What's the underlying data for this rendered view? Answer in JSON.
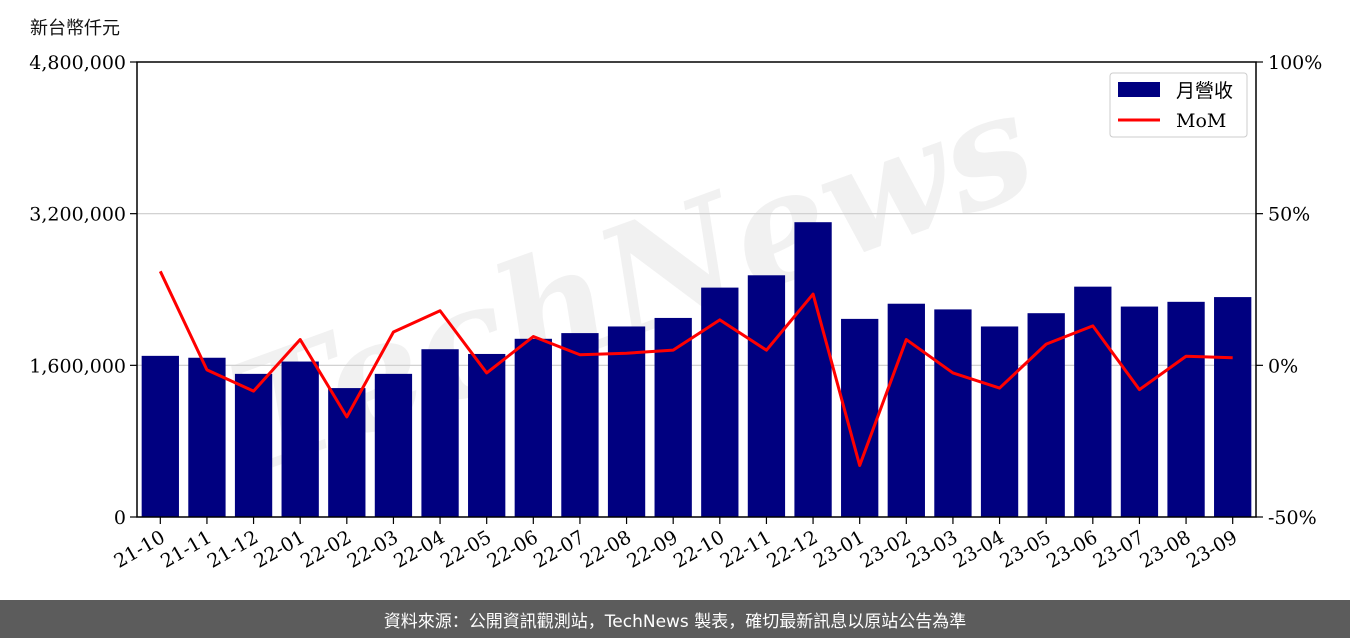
{
  "unit_label": "新台幣仟元",
  "footer_text": "資料來源：公開資訊觀測站，TechNews 製表，確切最新訊息以原站公告為準",
  "watermark": "TechNews",
  "colors": {
    "bar": "#000080",
    "line": "#ff0000",
    "grid": "#cccccc",
    "footer_bg": "#5c5c5c"
  },
  "chart_data": {
    "type": "bar",
    "categories": [
      "21-10",
      "21-11",
      "21-12",
      "22-01",
      "22-02",
      "22-03",
      "22-04",
      "22-05",
      "22-06",
      "22-07",
      "22-08",
      "22-09",
      "22-10",
      "22-11",
      "22-12",
      "23-01",
      "23-02",
      "23-03",
      "23-04",
      "23-05",
      "23-06",
      "23-07",
      "23-08",
      "23-09"
    ],
    "series": [
      {
        "name": "月營收",
        "type": "bar",
        "axis": "left",
        "values": [
          1700000,
          1680000,
          1510000,
          1640000,
          1360000,
          1510000,
          1770000,
          1720000,
          1880000,
          1940000,
          2010000,
          2100000,
          2420000,
          2550000,
          3110000,
          2090000,
          2250000,
          2190000,
          2010000,
          2150000,
          2430000,
          2220000,
          2270000,
          2320000
        ]
      },
      {
        "name": "MoM",
        "type": "line",
        "axis": "right",
        "unit": "%",
        "values": [
          31,
          -1.5,
          -8.5,
          8.5,
          -17,
          11,
          18,
          -2.5,
          9.5,
          3.5,
          4,
          5,
          15,
          5,
          23.5,
          -33,
          8.5,
          -2.5,
          -7.5,
          7,
          13,
          -8,
          3,
          2.5
        ]
      }
    ],
    "y_left": {
      "ylim": [
        0,
        4800000
      ],
      "ticks": [
        0,
        1600000,
        3200000,
        4800000
      ],
      "tick_labels": [
        "0",
        "1,600,000",
        "3,200,000",
        "4,800,000"
      ]
    },
    "y_right": {
      "ylim": [
        -50,
        100
      ],
      "ticks": [
        -50,
        0,
        50,
        100
      ],
      "tick_labels": [
        "-50%",
        "0%",
        "50%",
        "100%"
      ]
    },
    "grid": true,
    "legend": "top-right"
  }
}
